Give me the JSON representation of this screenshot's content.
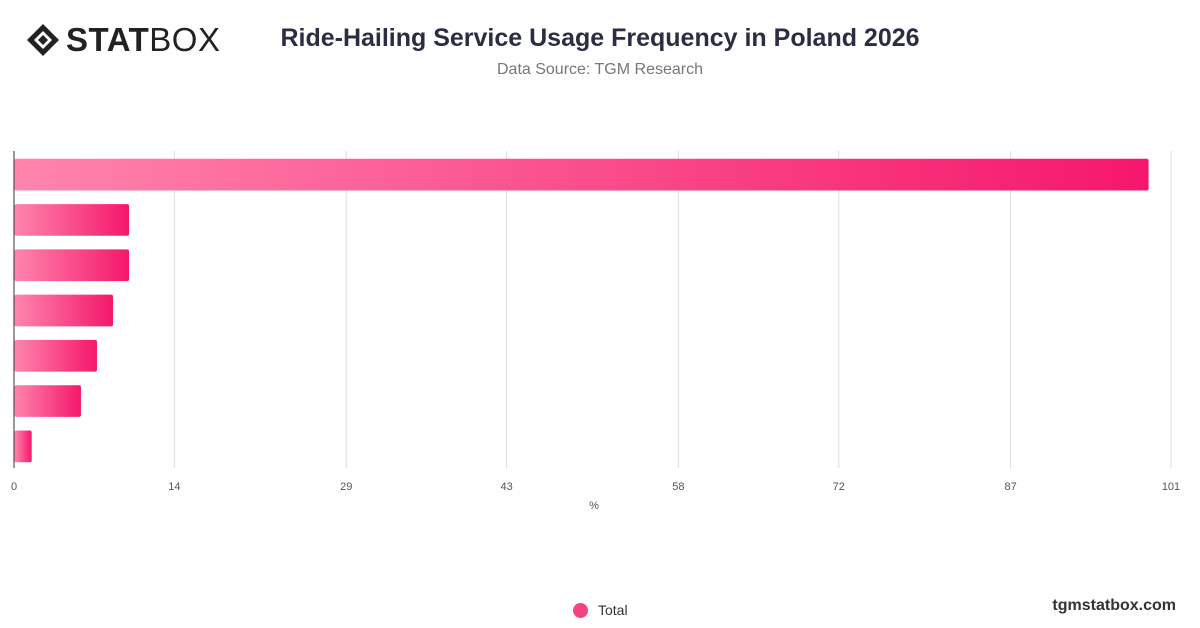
{
  "header": {
    "logo_bold": "STAT",
    "logo_light": "BOX",
    "title": "Ride-Hailing Service Usage Frequency in Poland 2026",
    "subtitle": "Data Source: TGM Research"
  },
  "footer": {
    "url": "tgmstatbox.com"
  },
  "colors": {
    "bar_start": "#ff85ad",
    "bar_end": "#f5176b",
    "legend_dot": "#f0457f",
    "grid": "#dddddd",
    "axis": "#333333"
  },
  "chart_data": {
    "type": "bar",
    "orientation": "horizontal",
    "categories": [
      "",
      "",
      "",
      "",
      "",
      "",
      ""
    ],
    "series": [
      {
        "name": "Total",
        "values": [
          99.0,
          10.0,
          10.0,
          8.6,
          7.2,
          5.8,
          1.5
        ]
      }
    ],
    "xlabel": "%",
    "ylabel": "",
    "xlim": [
      0,
      101
    ],
    "xticks": [
      0,
      14,
      29,
      43,
      58,
      72,
      87,
      101
    ],
    "grid": true,
    "legend_position": "bottom"
  }
}
